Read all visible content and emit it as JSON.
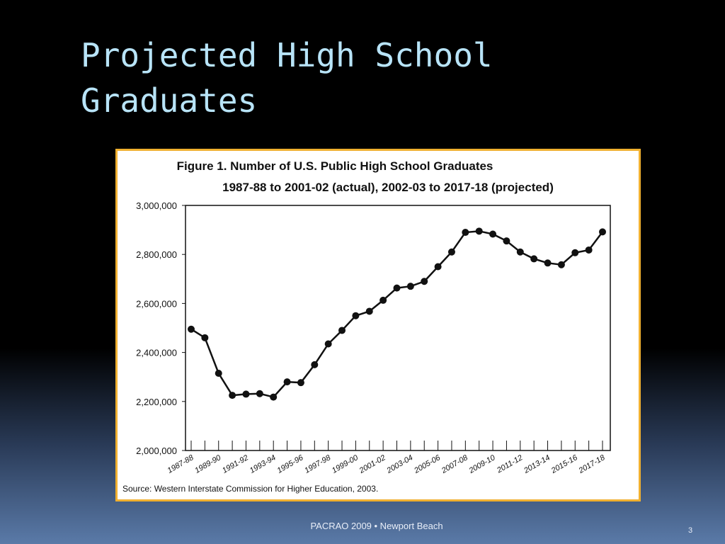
{
  "slide": {
    "title_lines": [
      "Projected High School",
      "Graduates"
    ],
    "footer": "PACRAO 2009 • Newport Beach",
    "page_number": "3"
  },
  "chart_data": {
    "type": "line",
    "title_lines": [
      "Figure 1. Number of U.S. Public High School Graduates",
      "1987-88 to 2001-02 (actual), 2002-03 to 2017-18 (projected)"
    ],
    "source": "Source: Western Interstate Commission for Higher Education, 2003.",
    "categories": [
      "1987-88",
      null,
      "1989-90",
      null,
      "1991-92",
      null,
      "1993-94",
      null,
      "1995-96",
      null,
      "1997-98",
      null,
      "1999-00",
      null,
      "2001-02",
      null,
      "2003-04",
      null,
      "2005-06",
      null,
      "2007-08",
      null,
      "2009-10",
      null,
      "2011-12",
      null,
      "2013-14",
      null,
      "2015-16",
      null,
      "2017-18"
    ],
    "series": [
      {
        "color": "#111111",
        "values": [
          2495000,
          2460000,
          2315000,
          2225000,
          2230000,
          2232000,
          2218000,
          2280000,
          2277000,
          2350000,
          2435000,
          2490000,
          2550000,
          2568000,
          2613000,
          2663000,
          2670000,
          2690000,
          2750000,
          2810000,
          2890000,
          2895000,
          2883000,
          2855000,
          2810000,
          2782000,
          2765000,
          2758000,
          2807000,
          2818000,
          2892000
        ]
      }
    ],
    "ylim": [
      2000000,
      3000000
    ],
    "yticks": [
      {
        "value": 2000000,
        "label": "2,000,000"
      },
      {
        "value": 2200000,
        "label": "2,200,000"
      },
      {
        "value": 2400000,
        "label": "2,400,000"
      },
      {
        "value": 2600000,
        "label": "2,600,000"
      },
      {
        "value": 2800000,
        "label": "2,800,000"
      },
      {
        "value": 3000000,
        "label": "3,000,000"
      }
    ],
    "grid": false
  }
}
